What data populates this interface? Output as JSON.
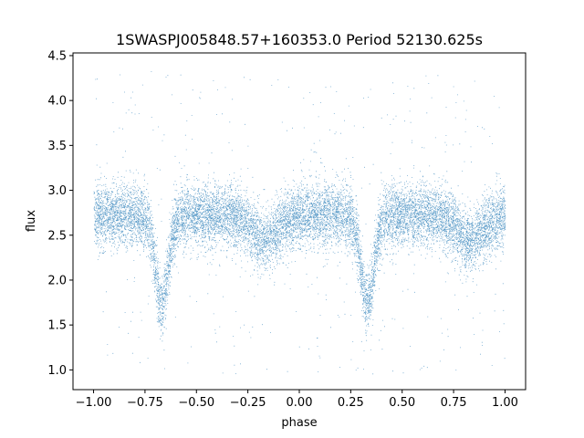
{
  "chart_data": {
    "type": "scatter",
    "title": "1SWASPJ005848.57+160353.0 Period 52130.625s",
    "xlabel": "phase",
    "ylabel": "flux",
    "xlim": [
      -1.1,
      1.1
    ],
    "ylim": [
      0.78,
      4.53
    ],
    "xticks": [
      -1.0,
      -0.75,
      -0.5,
      -0.25,
      0.0,
      0.25,
      0.5,
      0.75,
      1.0
    ],
    "xtick_labels": [
      "−1.00",
      "−0.75",
      "−0.50",
      "−0.25",
      "0.00",
      "0.25",
      "0.50",
      "0.75",
      "1.00"
    ],
    "yticks": [
      1.0,
      1.5,
      2.0,
      2.5,
      3.0,
      3.5,
      4.0,
      4.5
    ],
    "ytick_labels": [
      "1.0",
      "1.5",
      "2.0",
      "2.5",
      "3.0",
      "3.5",
      "4.0",
      "4.5"
    ],
    "grid": false,
    "point_color": "#1f77b4",
    "series": [
      {
        "x_range": [
          -1.0,
          1.0
        ],
        "baseline_flux": 2.72,
        "baseline_scatter": 0.17,
        "primary_minima_phase": [
          -0.67,
          0.33
        ],
        "primary_minimum_flux": 1.75,
        "secondary_minima_phase": [
          -0.17,
          0.83
        ],
        "secondary_minimum_flux": 2.45,
        "outlier_range": [
          0.95,
          4.35
        ]
      }
    ]
  }
}
